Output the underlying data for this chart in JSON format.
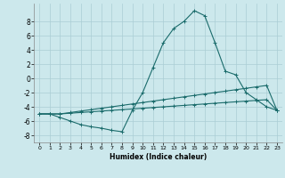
{
  "title": "",
  "xlabel": "Humidex (Indice chaleur)",
  "bg_color": "#cce8ec",
  "grid_color": "#aacdd4",
  "line_color": "#1a6b6b",
  "xlim": [
    -0.5,
    23.5
  ],
  "ylim": [
    -9,
    10.5
  ],
  "xticks": [
    0,
    1,
    2,
    3,
    4,
    5,
    6,
    7,
    8,
    9,
    10,
    11,
    12,
    13,
    14,
    15,
    16,
    17,
    18,
    19,
    20,
    21,
    22,
    23
  ],
  "yticks": [
    -8,
    -6,
    -4,
    -2,
    0,
    2,
    4,
    6,
    8
  ],
  "s1_x": [
    0,
    1,
    2,
    3,
    4,
    5,
    6,
    7,
    8,
    9,
    10,
    11,
    12,
    13,
    14,
    15,
    16,
    17,
    18,
    19,
    20,
    21,
    22,
    23
  ],
  "s1_y": [
    -5.0,
    -5.0,
    -5.5,
    -6.0,
    -6.5,
    -6.8,
    -7.0,
    -7.3,
    -7.5,
    -4.5,
    -2.0,
    1.5,
    5.0,
    7.0,
    8.0,
    9.5,
    8.8,
    5.0,
    1.0,
    0.5,
    -2.0,
    -3.0,
    -4.0,
    -4.5
  ],
  "s2_x": [
    0,
    1,
    2,
    3,
    4,
    5,
    6,
    7,
    8,
    9,
    10,
    11,
    12,
    13,
    14,
    15,
    16,
    17,
    18,
    19,
    20,
    21,
    22,
    23
  ],
  "s2_y": [
    -5.0,
    -5.0,
    -5.0,
    -4.9,
    -4.8,
    -4.7,
    -4.6,
    -4.5,
    -4.4,
    -4.3,
    -4.2,
    -4.1,
    -4.0,
    -3.9,
    -3.8,
    -3.7,
    -3.6,
    -3.5,
    -3.4,
    -3.3,
    -3.2,
    -3.1,
    -3.0,
    -4.5
  ],
  "s3_x": [
    0,
    1,
    2,
    3,
    4,
    5,
    6,
    7,
    8,
    9,
    10,
    11,
    12,
    13,
    14,
    15,
    16,
    17,
    18,
    19,
    20,
    21,
    22,
    23
  ],
  "s3_y": [
    -5.0,
    -5.0,
    -5.0,
    -4.8,
    -4.6,
    -4.4,
    -4.2,
    -4.0,
    -3.8,
    -3.6,
    -3.4,
    -3.2,
    -3.0,
    -2.8,
    -2.6,
    -2.4,
    -2.2,
    -2.0,
    -1.8,
    -1.6,
    -1.4,
    -1.2,
    -1.0,
    -4.5
  ]
}
